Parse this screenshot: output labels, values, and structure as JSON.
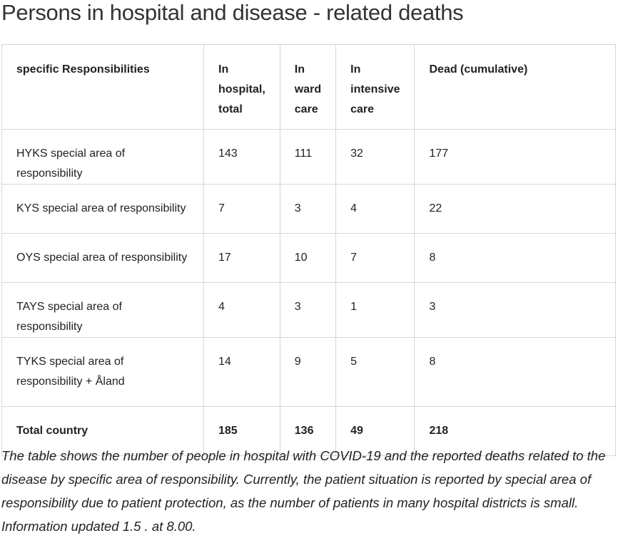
{
  "title": "Persons in hospital and disease - related deaths",
  "table": {
    "headers": [
      "specific Responsibilities",
      "In hospital, total",
      "In ward care",
      "In intensive care",
      "Dead (cumulative)"
    ],
    "rows": [
      [
        "HYKS  special area of responsibility",
        "143",
        "111",
        "32",
        "177"
      ],
      [
        "KYS special area of responsibility",
        "7",
        "3",
        "4",
        "22"
      ],
      [
        "OYS special area of responsibility",
        "17",
        "10",
        "7",
        "8"
      ],
      [
        "TAYS special area of responsibility",
        "4",
        "3",
        "1",
        "3"
      ],
      [
        "TYKS special area of responsibility + Åland",
        "14",
        "9",
        "5",
        "8"
      ]
    ],
    "total": [
      "Total country",
      "185",
      "136",
      "49",
      "218"
    ]
  },
  "caption": "The table shows the number of people in hospital with COVID-19 and the reported deaths related to the disease by specific area of responsibility. Currently, the patient situation is reported by special area of responsibility due to patient protection, as the number of patients in many hospital districts is small. Information updated 1.5 . at 8.00."
}
